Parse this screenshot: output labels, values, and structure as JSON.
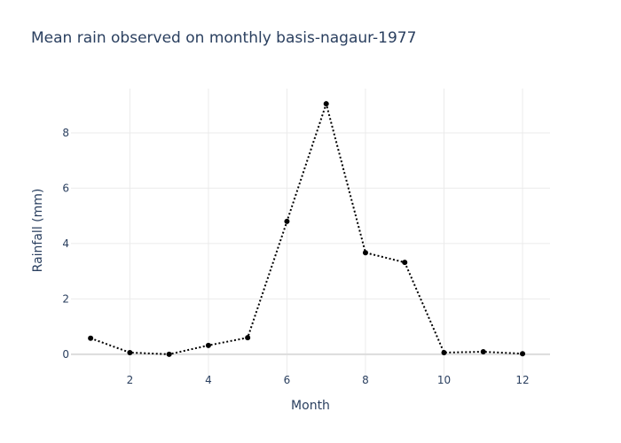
{
  "chart_data": {
    "type": "line",
    "title": "Mean rain observed on monthly basis-nagaur-1977",
    "xlabel": "Month",
    "ylabel": "Rainfall (mm)",
    "x": [
      1,
      2,
      3,
      4,
      5,
      6,
      7,
      8,
      9,
      10,
      11,
      12
    ],
    "series": [
      {
        "values": [
          0.58,
          0.06,
          0.0,
          0.32,
          0.6,
          4.8,
          9.05,
          3.67,
          3.32,
          0.06,
          0.09,
          0.02
        ]
      }
    ],
    "xticks": [
      "2",
      "4",
      "6",
      "8",
      "10",
      "12"
    ],
    "yticks": [
      "0",
      "2",
      "4",
      "6",
      "8"
    ],
    "xlim": [
      0.5,
      12.7
    ],
    "ylim": [
      -0.87,
      9.6
    ],
    "grid": true,
    "line_style": "dotted",
    "marker": "circle",
    "line_color": "#000000",
    "grid_color": "#ebebeb",
    "text_color": "#2a3f5f"
  }
}
